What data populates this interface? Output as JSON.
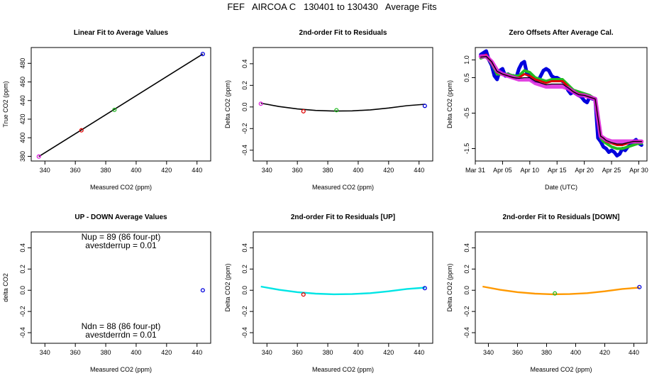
{
  "page_title": "FEF   AIRCOA C   130401 to 130430   Average Fits",
  "colors": {
    "black": "#000000",
    "red": "#e00000",
    "green": "#22bb22",
    "blue": "#0000dd",
    "magenta": "#dd22dd",
    "purple": "#9900cc",
    "cyan": "#00e5e5",
    "orange": "#ff9900"
  },
  "chart_data": [
    {
      "id": "p1",
      "type": "scatter",
      "title": "Linear Fit to Average Values",
      "xlabel": "Measured CO2 (ppm)",
      "ylabel": "True CO2 (ppm)",
      "xlim": [
        331,
        449
      ],
      "ylim": [
        375,
        497
      ],
      "xticks": [
        "340",
        "360",
        "380",
        "400",
        "420",
        "440"
      ],
      "yticks": [
        "380",
        "400",
        "420",
        "440",
        "460",
        "480"
      ],
      "points": [
        {
          "x": 336.0,
          "y": 379.8,
          "color": "magenta"
        },
        {
          "x": 364.0,
          "y": 408.0,
          "color": "red"
        },
        {
          "x": 385.7,
          "y": 430.0,
          "color": "green"
        },
        {
          "x": 443.8,
          "y": 490.0,
          "color": "blue"
        }
      ],
      "line": {
        "x": [
          336.0,
          443.8
        ],
        "y": [
          379.8,
          490.0
        ],
        "color": "black"
      }
    },
    {
      "id": "p2",
      "type": "scatter",
      "title": "2nd-order Fit to Residuals",
      "xlabel": "Measured CO2 (ppm)",
      "ylabel": "Delta CO2 (ppm)",
      "xlim": [
        331,
        449
      ],
      "ylim": [
        -0.5,
        0.55
      ],
      "xticks": [
        "340",
        "360",
        "380",
        "400",
        "420",
        "440"
      ],
      "yticks": [
        "-0.4",
        "-0.2",
        "0.0",
        "0.2",
        "0.4"
      ],
      "points": [
        {
          "x": 336.0,
          "y": 0.03,
          "color": "magenta"
        },
        {
          "x": 364.0,
          "y": -0.04,
          "color": "red"
        },
        {
          "x": 385.7,
          "y": -0.03,
          "color": "green"
        },
        {
          "x": 443.8,
          "y": 0.01,
          "color": "blue"
        }
      ],
      "curve": {
        "x": [
          336,
          348,
          360,
          372,
          384,
          396,
          408,
          420,
          432,
          444
        ],
        "y": [
          0.035,
          0.004,
          -0.018,
          -0.032,
          -0.038,
          -0.036,
          -0.027,
          -0.01,
          0.012,
          0.025
        ],
        "color": "black"
      }
    },
    {
      "id": "p3",
      "type": "line",
      "title": "Zero Offsets After Average Cal.",
      "xlabel": "Date (UTC)",
      "ylabel": "Delta CO2 (ppm)",
      "xlim": [
        0,
        31.5
      ],
      "ylim": [
        -1.85,
        1.35
      ],
      "xtick_values": [
        0,
        5,
        10,
        15,
        20,
        25,
        30
      ],
      "xticks": [
        "Mar 31",
        "Apr 05",
        "Apr 10",
        "Apr 15",
        "Apr 20",
        "Apr 25",
        "Apr 30"
      ],
      "ytick_values": [
        1.0,
        0.5,
        -0.5,
        -1.5
      ],
      "yticks": [
        "1.0",
        "0.5",
        "-0.5",
        "-1.5"
      ],
      "series": [
        {
          "name": "blue",
          "color": "blue",
          "x": [
            1.0,
            1.5,
            2.0,
            2.5,
            3.0,
            3.5,
            4.0,
            4.5,
            5.0,
            5.5,
            6.0,
            6.5,
            7.0,
            7.5,
            8.0,
            8.5,
            9.0,
            9.5,
            10.0,
            10.5,
            11.0,
            11.5,
            12.0,
            12.5,
            13.0,
            13.5,
            14.0,
            14.5,
            15.0,
            15.5,
            16.0,
            16.5,
            17.0,
            17.5,
            18.0,
            18.5,
            19.0,
            19.5,
            20.0,
            20.5,
            21.0,
            21.5,
            22.0,
            22.5,
            23.0,
            23.5,
            24.0,
            24.5,
            25.0,
            25.5,
            26.0,
            26.5,
            27.0,
            27.5,
            28.0,
            28.5,
            29.0,
            29.5,
            30.0,
            30.5
          ],
          "y": [
            1.15,
            1.2,
            1.25,
            1.0,
            0.85,
            0.55,
            0.45,
            0.7,
            0.75,
            0.55,
            0.6,
            0.55,
            0.55,
            0.5,
            0.75,
            0.9,
            0.95,
            0.6,
            0.55,
            0.45,
            0.4,
            0.4,
            0.55,
            0.7,
            0.75,
            0.7,
            0.55,
            0.5,
            0.5,
            0.45,
            0.4,
            0.35,
            0.15,
            0.05,
            0.1,
            0.05,
            0.0,
            -0.05,
            -0.15,
            -0.2,
            -0.05,
            -0.1,
            -0.1,
            -1.2,
            -1.3,
            -1.45,
            -1.5,
            -1.6,
            -1.55,
            -1.6,
            -1.7,
            -1.65,
            -1.5,
            -1.55,
            -1.45,
            -1.4,
            -1.3,
            -1.25,
            -1.35,
            -1.4
          ]
        },
        {
          "name": "green",
          "color": "green",
          "x": [
            1.0,
            2.0,
            3.0,
            4.0,
            5.0,
            6.0,
            7.0,
            8.0,
            9.0,
            10.0,
            11.0,
            12.0,
            13.0,
            14.0,
            15.0,
            16.0,
            17.0,
            18.0,
            19.0,
            20.0,
            21.0,
            22.0,
            23.0,
            23.5,
            24.0,
            25.0,
            26.0,
            27.0,
            28.0,
            29.0,
            30.0,
            30.5
          ],
          "y": [
            1.05,
            1.1,
            0.9,
            0.6,
            0.6,
            0.6,
            0.55,
            0.55,
            0.7,
            0.65,
            0.5,
            0.45,
            0.4,
            0.45,
            0.45,
            0.45,
            0.3,
            0.15,
            0.1,
            0.05,
            0.0,
            -0.1,
            -1.2,
            -1.3,
            -1.35,
            -1.45,
            -1.5,
            -1.5,
            -1.45,
            -1.4,
            -1.35,
            -1.35
          ]
        },
        {
          "name": "red",
          "color": "red",
          "x": [
            1.0,
            2.0,
            3.0,
            4.0,
            5.0,
            6.0,
            7.0,
            8.0,
            9.0,
            10.0,
            11.0,
            12.0,
            13.0,
            14.0,
            15.0,
            16.0,
            17.0,
            18.0,
            19.0,
            20.0,
            21.0,
            22.0,
            23.0,
            23.5,
            24.0,
            25.0,
            26.0,
            27.0,
            28.0,
            29.0,
            30.0,
            30.5
          ],
          "y": [
            1.1,
            1.15,
            0.95,
            0.65,
            0.6,
            0.55,
            0.5,
            0.5,
            0.6,
            0.55,
            0.45,
            0.4,
            0.35,
            0.4,
            0.4,
            0.4,
            0.25,
            0.1,
            0.05,
            0.0,
            -0.05,
            -0.1,
            -1.15,
            -1.2,
            -1.3,
            -1.35,
            -1.4,
            -1.4,
            -1.35,
            -1.3,
            -1.3,
            -1.3
          ]
        },
        {
          "name": "magenta",
          "color": "magenta",
          "x": [
            1.0,
            2.0,
            3.0,
            4.0,
            5.0,
            6.0,
            7.0,
            8.0,
            9.0,
            10.0,
            11.0,
            12.0,
            13.0,
            14.0,
            15.0,
            16.0,
            17.0,
            18.0,
            19.0,
            20.0,
            21.0,
            22.0,
            23.0,
            23.5,
            24.0,
            25.0,
            26.0,
            27.0,
            28.0,
            29.0,
            30.0,
            30.5
          ],
          "y": [
            1.1,
            1.1,
            0.95,
            0.7,
            0.6,
            0.55,
            0.5,
            0.45,
            0.45,
            0.45,
            0.35,
            0.3,
            0.25,
            0.25,
            0.25,
            0.25,
            0.2,
            0.1,
            0.0,
            0.0,
            -0.05,
            -0.1,
            -1.15,
            -1.2,
            -1.25,
            -1.3,
            -1.3,
            -1.3,
            -1.3,
            -1.3,
            -1.3,
            -1.3
          ]
        },
        {
          "name": "black",
          "color": "black",
          "x": [
            1.0,
            2.0,
            3.0,
            4.0,
            5.0,
            6.0,
            7.0,
            8.0,
            9.0,
            10.0,
            11.0,
            12.0,
            13.0,
            14.0,
            15.0,
            16.0,
            17.0,
            18.0,
            19.0,
            20.0,
            21.0,
            22.0,
            23.0,
            23.5,
            24.0,
            25.0,
            26.0,
            27.0,
            28.0,
            29.0,
            30.0,
            30.5
          ],
          "y": [
            1.08,
            1.1,
            0.95,
            0.68,
            0.6,
            0.55,
            0.5,
            0.48,
            0.5,
            0.5,
            0.4,
            0.35,
            0.3,
            0.32,
            0.32,
            0.32,
            0.22,
            0.1,
            0.02,
            0.0,
            -0.05,
            -0.1,
            -1.15,
            -1.2,
            -1.27,
            -1.33,
            -1.37,
            -1.37,
            -1.33,
            -1.3,
            -1.3,
            -1.3
          ]
        }
      ]
    },
    {
      "id": "p4",
      "type": "scatter",
      "title": "UP - DOWN Average Values",
      "xlabel": "Measured CO2 (ppm)",
      "ylabel": "delta CO2",
      "xlim": [
        331,
        449
      ],
      "ylim": [
        -0.5,
        0.55
      ],
      "xticks": [
        "340",
        "360",
        "380",
        "400",
        "420",
        "440"
      ],
      "yticks": [
        "-0.4",
        "-0.2",
        "0.0",
        "0.2",
        "0.4"
      ],
      "points": [
        {
          "x": 443.8,
          "y": 0.0,
          "color": "blue"
        }
      ],
      "annotations": [
        {
          "text": "Nup = 89 (86 four-pt)",
          "pos": "top-line1"
        },
        {
          "text": "avestderrup =  0.01",
          "pos": "top-line2"
        },
        {
          "text": "Ndn = 88 (86 four-pt)",
          "pos": "bottom-line1"
        },
        {
          "text": "avestderrdn =  0.01",
          "pos": "bottom-line2"
        }
      ]
    },
    {
      "id": "p5",
      "type": "scatter",
      "title": "2nd-order Fit to Residuals [UP]",
      "xlabel": "Measured CO2 (ppm)",
      "ylabel": "Delta CO2 (ppm)",
      "xlim": [
        331,
        449
      ],
      "ylim": [
        -0.5,
        0.55
      ],
      "xticks": [
        "340",
        "360",
        "380",
        "400",
        "420",
        "440"
      ],
      "yticks": [
        "-0.4",
        "-0.2",
        "0.0",
        "0.2",
        "0.4"
      ],
      "points": [
        {
          "x": 364.0,
          "y": -0.04,
          "color": "red"
        },
        {
          "x": 443.8,
          "y": 0.02,
          "color": "blue"
        }
      ],
      "curve": {
        "x": [
          336,
          348,
          360,
          372,
          384,
          396,
          408,
          420,
          432,
          444
        ],
        "y": [
          0.035,
          0.004,
          -0.018,
          -0.032,
          -0.038,
          -0.036,
          -0.027,
          -0.01,
          0.012,
          0.025
        ],
        "color": "cyan"
      }
    },
    {
      "id": "p6",
      "type": "scatter",
      "title": "2nd-order Fit to Residuals [DOWN]",
      "xlabel": "Measured CO2 (ppm)",
      "ylabel": "Delta CO2 (ppm)",
      "xlim": [
        331,
        449
      ],
      "ylim": [
        -0.5,
        0.55
      ],
      "xticks": [
        "340",
        "360",
        "380",
        "400",
        "420",
        "440"
      ],
      "yticks": [
        "-0.4",
        "-0.2",
        "0.0",
        "0.2",
        "0.4"
      ],
      "points": [
        {
          "x": 385.7,
          "y": -0.03,
          "color": "green"
        },
        {
          "x": 443.8,
          "y": 0.03,
          "color": "blue"
        }
      ],
      "curve": {
        "x": [
          336,
          348,
          360,
          372,
          384,
          396,
          408,
          420,
          432,
          444
        ],
        "y": [
          0.035,
          0.004,
          -0.018,
          -0.032,
          -0.038,
          -0.036,
          -0.027,
          -0.01,
          0.012,
          0.025
        ],
        "color": "orange"
      }
    }
  ]
}
